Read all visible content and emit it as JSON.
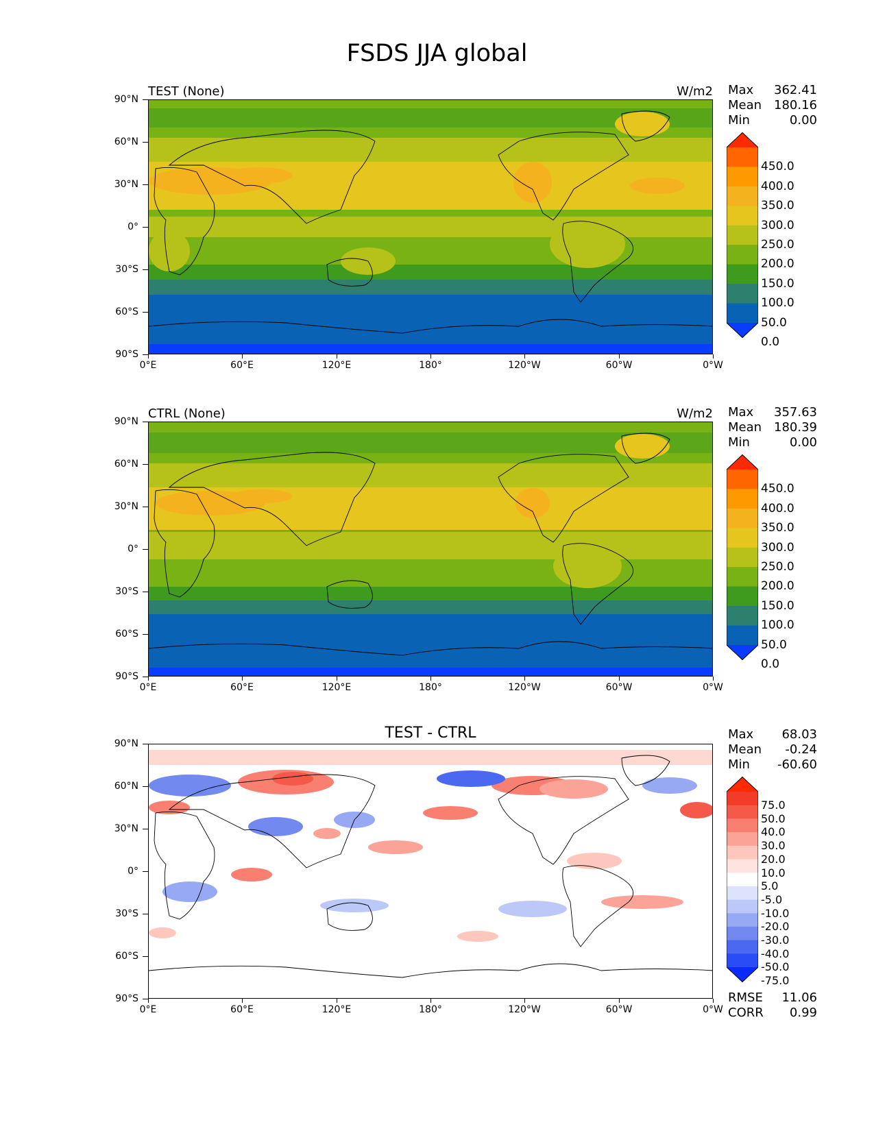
{
  "figure": {
    "title": "FSDS JJA global"
  },
  "axes": {
    "yticks": [
      "90°N",
      "60°N",
      "30°N",
      "0°",
      "30°S",
      "60°S",
      "90°S"
    ],
    "xticks": [
      "0°E",
      "60°E",
      "120°E",
      "180°",
      "120°W",
      "60°W",
      "0°W"
    ]
  },
  "panels": [
    {
      "id": "test",
      "title": "TEST (None)",
      "units": "W/m2",
      "stats": {
        "max_label": "Max",
        "max": "362.41",
        "mean_label": "Mean",
        "mean": "180.16",
        "min_label": "Min",
        "min": "0.00"
      },
      "colorbar": {
        "labels": [
          "450.0",
          "400.0",
          "350.0",
          "300.0",
          "250.0",
          "200.0",
          "150.0",
          "100.0",
          "50.0",
          "0.0"
        ],
        "colors": [
          "#ff2a00",
          "#ff6600",
          "#ff9900",
          "#f5b21f",
          "#e6c51e",
          "#b6c11a",
          "#78b214",
          "#3e9b1e",
          "#2d7f6e",
          "#0a62b4",
          "#0a3cff"
        ]
      }
    },
    {
      "id": "ctrl",
      "title": "CTRL (None)",
      "units": "W/m2",
      "stats": {
        "max_label": "Max",
        "max": "357.63",
        "mean_label": "Mean",
        "mean": "180.39",
        "min_label": "Min",
        "min": "0.00"
      },
      "colorbar": {
        "labels": [
          "450.0",
          "400.0",
          "350.0",
          "300.0",
          "250.0",
          "200.0",
          "150.0",
          "100.0",
          "50.0",
          "0.0"
        ],
        "colors": [
          "#ff2a00",
          "#ff6600",
          "#ff9900",
          "#f5b21f",
          "#e6c51e",
          "#b6c11a",
          "#78b214",
          "#3e9b1e",
          "#2d7f6e",
          "#0a62b4",
          "#0a3cff"
        ]
      }
    },
    {
      "id": "diff",
      "title": "TEST - CTRL",
      "units": "",
      "stats": {
        "max_label": "Max",
        "max": "68.03",
        "mean_label": "Mean",
        "mean": "-0.24",
        "min_label": "Min",
        "min": "-60.60"
      },
      "colorbar": {
        "labels": [
          "75.0",
          "50.0",
          "40.0",
          "30.0",
          "20.0",
          "10.0",
          "5.0",
          "-5.0",
          "-10.0",
          "-20.0",
          "-30.0",
          "-40.0",
          "-50.0",
          "-75.0"
        ],
        "colors": [
          "#ff2a00",
          "#f03c28",
          "#f5594a",
          "#f98071",
          "#fba396",
          "#fdc7bd",
          "#fee3de",
          "#ffffff",
          "#dde3fb",
          "#bcc8f7",
          "#97a9f3",
          "#7289f0",
          "#4a68f0",
          "#2a4cf6",
          "#0a2aff"
        ]
      },
      "footer": {
        "rmse_label": "RMSE",
        "rmse": "11.06",
        "corr_label": "CORR",
        "corr": "0.99"
      }
    }
  ]
}
